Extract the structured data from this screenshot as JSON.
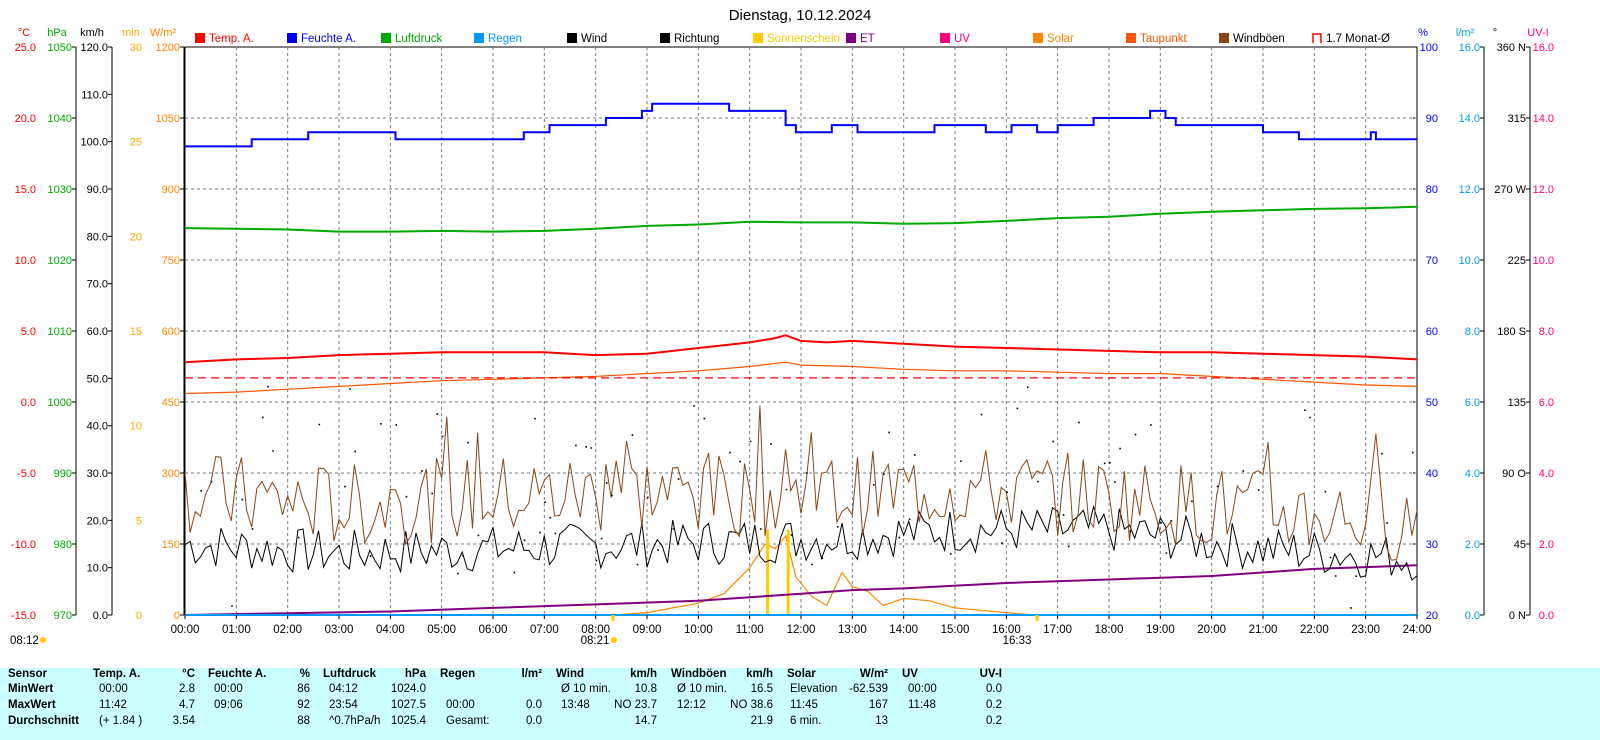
{
  "chart_data": {
    "type": "line",
    "title": "Dienstag, 10.12.2024",
    "x_tick_labels": [
      "00:00",
      "01:00",
      "02:00",
      "03:00",
      "04:00",
      "05:00",
      "06:00",
      "07:00",
      "08:00",
      "09:00",
      "10:00",
      "11:00",
      "12:00",
      "13:00",
      "14:00",
      "15:00",
      "16:00",
      "17:00",
      "18:00",
      "19:00",
      "20:00",
      "21:00",
      "22:00",
      "23:00",
      "24:00"
    ],
    "grid": true,
    "legend_position": "top",
    "legend": [
      {
        "label": "Temp. A.",
        "color": "#ff0000"
      },
      {
        "label": "Feuchte A.",
        "color": "#0000ff"
      },
      {
        "label": "Luftdruck",
        "color": "#00aa00"
      },
      {
        "label": "Regen",
        "color": "#0099ff"
      },
      {
        "label": "Wind",
        "color": "#000000"
      },
      {
        "label": "Richtung",
        "color": "#000000"
      },
      {
        "label": "Sonnenschein",
        "color": "#ffcc00"
      },
      {
        "label": "ET",
        "color": "#800080"
      },
      {
        "label": "UV",
        "color": "#ff0080"
      },
      {
        "label": "Solar",
        "color": "#ff8800"
      },
      {
        "label": "Taupunkt",
        "color": "#ff5500"
      },
      {
        "label": "Windböen",
        "color": "#8b4513"
      },
      {
        "label": "1.7 Monat-Ø",
        "color": "#ff0000"
      }
    ],
    "axes": {
      "temp": {
        "unit": "°C",
        "ticks": [
          "25.0",
          "20.0",
          "15.0",
          "10.0",
          "5.0",
          "0.0",
          "-5.0",
          "-10.0",
          "-15.0"
        ],
        "ylim": [
          -15,
          25
        ],
        "color": "#ff0000"
      },
      "pressure": {
        "unit": "hPa",
        "ticks": [
          "1050",
          "1040",
          "1030",
          "1020",
          "1010",
          "1000",
          "990",
          "980",
          "970"
        ],
        "ylim": [
          970,
          1050
        ],
        "color": "#00aa00"
      },
      "wind": {
        "unit": "km/h",
        "ticks": [
          "120.0",
          "110.0",
          "100.0",
          "90.0",
          "80.0",
          "70.0",
          "60.0",
          "50.0",
          "40.0",
          "30.0",
          "20.0",
          "10.0",
          "0.0"
        ],
        "ylim": [
          0,
          120
        ],
        "color": "#000000"
      },
      "sunshine": {
        "unit": "min",
        "ticks": [
          "30",
          "25",
          "20",
          "15",
          "10",
          "5",
          "0"
        ],
        "ylim": [
          0,
          30
        ],
        "color": "#ffaa00"
      },
      "solar": {
        "unit": "W/m²",
        "ticks": [
          "1200",
          "1050",
          "900",
          "750",
          "600",
          "450",
          "300",
          "150",
          "0"
        ],
        "ylim": [
          0,
          1200
        ],
        "color": "#ff8800"
      },
      "humidity": {
        "unit": "%",
        "ticks": [
          "100",
          "90",
          "80",
          "70",
          "60",
          "50",
          "40",
          "30",
          "20"
        ],
        "ylim": [
          20,
          100
        ],
        "color": "#0000ff"
      },
      "rain": {
        "unit": "l/m²",
        "ticks": [
          "16.0",
          "14.0",
          "12.0",
          "10.0",
          "8.0",
          "6.0",
          "4.0",
          "2.0",
          "0.0"
        ],
        "ylim": [
          0,
          16
        ],
        "color": "#0099ff"
      },
      "direction": {
        "unit": "°",
        "ticks": [
          "360 N",
          "315",
          "270 W",
          "225",
          "180 S",
          "135",
          "90 O",
          "45",
          "0 N"
        ],
        "ylim": [
          0,
          360
        ],
        "color": "#000000"
      },
      "uv": {
        "unit": "UV-I",
        "ticks": [
          "16.0",
          "14.0",
          "12.0",
          "10.0",
          "8.0",
          "6.0",
          "4.0",
          "2.0",
          "0.0"
        ],
        "ylim": [
          0,
          16
        ],
        "color": "#ff0080"
      }
    },
    "series": [
      {
        "name": "Feuchte A.",
        "axis": "humidity",
        "step": true,
        "points": [
          [
            0,
            86
          ],
          [
            1.15,
            86
          ],
          [
            1.3,
            87
          ],
          [
            2.3,
            87
          ],
          [
            2.4,
            88
          ],
          [
            4.0,
            88
          ],
          [
            4.1,
            87
          ],
          [
            6.5,
            87
          ],
          [
            6.6,
            88
          ],
          [
            7.0,
            88
          ],
          [
            7.1,
            89
          ],
          [
            8.0,
            89
          ],
          [
            8.2,
            90
          ],
          [
            8.8,
            90
          ],
          [
            8.9,
            91
          ],
          [
            9.1,
            92
          ],
          [
            10.5,
            92
          ],
          [
            10.6,
            91
          ],
          [
            11.4,
            91
          ],
          [
            11.7,
            89
          ],
          [
            11.9,
            88
          ],
          [
            12.4,
            88
          ],
          [
            12.6,
            89
          ],
          [
            12.9,
            89
          ],
          [
            13.1,
            88
          ],
          [
            14.5,
            88
          ],
          [
            14.6,
            89
          ],
          [
            15.5,
            89
          ],
          [
            15.6,
            88
          ],
          [
            16.0,
            88
          ],
          [
            16.1,
            89
          ],
          [
            16.5,
            89
          ],
          [
            16.6,
            88
          ],
          [
            16.9,
            88
          ],
          [
            17.0,
            89
          ],
          [
            17.6,
            89
          ],
          [
            17.7,
            90
          ],
          [
            18.7,
            90
          ],
          [
            18.8,
            91
          ],
          [
            19.1,
            90
          ],
          [
            19.3,
            89
          ],
          [
            20.9,
            89
          ],
          [
            21.0,
            88
          ],
          [
            21.6,
            88
          ],
          [
            21.7,
            87
          ],
          [
            23.0,
            87
          ],
          [
            23.1,
            88
          ],
          [
            23.2,
            87
          ],
          [
            24.0,
            87
          ]
        ]
      },
      {
        "name": "Luftdruck",
        "axis": "pressure",
        "step": false,
        "points": [
          [
            0,
            1024.5
          ],
          [
            2,
            1024.3
          ],
          [
            3,
            1024.0
          ],
          [
            4,
            1024.0
          ],
          [
            5,
            1024.1
          ],
          [
            6,
            1024.0
          ],
          [
            7,
            1024.1
          ],
          [
            8,
            1024.4
          ],
          [
            9,
            1024.8
          ],
          [
            10,
            1025.0
          ],
          [
            11,
            1025.4
          ],
          [
            12,
            1025.3
          ],
          [
            13,
            1025.3
          ],
          [
            14,
            1025.1
          ],
          [
            15,
            1025.2
          ],
          [
            16,
            1025.5
          ],
          [
            17,
            1025.9
          ],
          [
            18,
            1026.1
          ],
          [
            19,
            1026.5
          ],
          [
            20,
            1026.8
          ],
          [
            21,
            1027.0
          ],
          [
            22,
            1027.2
          ],
          [
            23,
            1027.3
          ],
          [
            24,
            1027.5
          ]
        ]
      },
      {
        "name": "Temp. A.",
        "axis": "temp",
        "step": false,
        "points": [
          [
            0,
            2.8
          ],
          [
            1,
            3.0
          ],
          [
            2,
            3.1
          ],
          [
            3,
            3.3
          ],
          [
            4,
            3.4
          ],
          [
            5,
            3.5
          ],
          [
            6,
            3.5
          ],
          [
            7,
            3.5
          ],
          [
            7.5,
            3.4
          ],
          [
            8,
            3.3
          ],
          [
            9,
            3.4
          ],
          [
            9.5,
            3.6
          ],
          [
            10,
            3.8
          ],
          [
            10.5,
            4.0
          ],
          [
            11,
            4.2
          ],
          [
            11.5,
            4.5
          ],
          [
            11.7,
            4.7
          ],
          [
            12,
            4.3
          ],
          [
            12.5,
            4.2
          ],
          [
            13,
            4.3
          ],
          [
            14,
            4.1
          ],
          [
            15,
            3.9
          ],
          [
            16,
            3.8
          ],
          [
            17,
            3.7
          ],
          [
            18,
            3.6
          ],
          [
            19,
            3.5
          ],
          [
            20,
            3.5
          ],
          [
            21,
            3.4
          ],
          [
            22,
            3.3
          ],
          [
            23,
            3.2
          ],
          [
            23.5,
            3.1
          ],
          [
            24,
            3.0
          ]
        ]
      },
      {
        "name": "Taupunkt",
        "axis": "temp",
        "step": false,
        "points": [
          [
            0,
            0.6
          ],
          [
            1,
            0.7
          ],
          [
            2,
            0.9
          ],
          [
            3,
            1.1
          ],
          [
            4,
            1.3
          ],
          [
            5,
            1.5
          ],
          [
            6,
            1.6
          ],
          [
            7,
            1.7
          ],
          [
            8,
            1.8
          ],
          [
            9,
            2.0
          ],
          [
            10,
            2.2
          ],
          [
            11,
            2.5
          ],
          [
            11.7,
            2.8
          ],
          [
            12,
            2.6
          ],
          [
            13,
            2.5
          ],
          [
            14,
            2.3
          ],
          [
            15,
            2.2
          ],
          [
            16,
            2.2
          ],
          [
            17,
            2.1
          ],
          [
            18,
            2.0
          ],
          [
            19,
            2.0
          ],
          [
            20,
            1.8
          ],
          [
            21,
            1.6
          ],
          [
            22,
            1.4
          ],
          [
            23,
            1.2
          ],
          [
            24,
            1.1
          ]
        ]
      },
      {
        "name": "1.7 Monat-Ø",
        "axis": "temp",
        "step": false,
        "dashed": true,
        "points": [
          [
            0,
            1.7
          ],
          [
            24,
            1.7
          ]
        ]
      },
      {
        "name": "Solar",
        "axis": "solar",
        "step": false,
        "points": [
          [
            8.35,
            0
          ],
          [
            9,
            5
          ],
          [
            9.5,
            15
          ],
          [
            10,
            25
          ],
          [
            10.5,
            45
          ],
          [
            11,
            100
          ],
          [
            11.3,
            150
          ],
          [
            11.5,
            140
          ],
          [
            11.7,
            167
          ],
          [
            11.9,
            80
          ],
          [
            12.2,
            40
          ],
          [
            12.5,
            20
          ],
          [
            12.8,
            90
          ],
          [
            13.0,
            60
          ],
          [
            13.3,
            50
          ],
          [
            13.6,
            20
          ],
          [
            14.0,
            35
          ],
          [
            14.5,
            30
          ],
          [
            15.0,
            15
          ],
          [
            15.5,
            10
          ],
          [
            16.0,
            5
          ],
          [
            16.55,
            0
          ]
        ]
      },
      {
        "name": "Sonnenschein",
        "axis": "sunshine",
        "type": "bar",
        "points": [
          [
            11.35,
            4.5
          ],
          [
            11.75,
            4.5
          ]
        ]
      },
      {
        "name": "ET",
        "axis": "rain",
        "step": false,
        "points": [
          [
            0,
            0
          ],
          [
            2,
            0.05
          ],
          [
            4,
            0.1
          ],
          [
            6,
            0.2
          ],
          [
            8,
            0.3
          ],
          [
            10,
            0.4
          ],
          [
            12,
            0.6
          ],
          [
            13,
            0.7
          ],
          [
            14,
            0.75
          ],
          [
            16,
            0.9
          ],
          [
            18,
            1.0
          ],
          [
            20,
            1.1
          ],
          [
            22,
            1.3
          ],
          [
            24,
            1.4
          ]
        ]
      },
      {
        "name": "Regen",
        "axis": "rain",
        "points": [
          [
            0,
            0
          ],
          [
            24,
            0
          ]
        ]
      },
      {
        "name": "Wind",
        "axis": "wind",
        "noise": "wind",
        "base": [
          [
            0,
            15
          ],
          [
            3,
            13
          ],
          [
            6,
            14
          ],
          [
            9,
            15
          ],
          [
            12,
            16
          ],
          [
            15,
            18
          ],
          [
            18,
            18
          ],
          [
            21,
            14
          ],
          [
            24,
            12
          ]
        ]
      },
      {
        "name": "Windböen",
        "axis": "wind",
        "noise": "gust",
        "base": [
          [
            0,
            26
          ],
          [
            3,
            23
          ],
          [
            6,
            25
          ],
          [
            9,
            26
          ],
          [
            12,
            25
          ],
          [
            15,
            27
          ],
          [
            18,
            25
          ],
          [
            21,
            22
          ],
          [
            24,
            20
          ]
        ]
      },
      {
        "name": "Richtung",
        "axis": "direction",
        "type": "scatter",
        "center": 80
      }
    ],
    "annotations": {
      "sunrise": "08:21",
      "sunset": "16:33",
      "sunshine_total": "08:12"
    }
  },
  "table": {
    "headers": {
      "sensor": "Sensor",
      "temp": "Temp. A.",
      "temp_unit": "°C",
      "hum": "Feuchte A.",
      "hum_unit": "%",
      "press": "Luftdruck",
      "press_unit": "hPa",
      "rain": "Regen",
      "rain_unit": "l/m²",
      "wind": "Wind",
      "wind_unit": "km/h",
      "gust": "Windböen",
      "gust_unit": "km/h",
      "solar": "Solar",
      "solar_unit": "W/m²",
      "uv": "UV",
      "uv_unit": "UV-I"
    },
    "row_labels": [
      "MinWert",
      "MaxWert",
      "Durchschnitt"
    ],
    "rows": [
      {
        "temp_t": "00:00",
        "temp_v": "2.8",
        "hum_t": "00:00",
        "hum_v": "86",
        "press_t": "04:12",
        "press_v": "1024.0",
        "rain_t": "",
        "rain_v": "",
        "wind_t": "Ø 10 min.",
        "wind_v": "10.8",
        "gust_t": "Ø 10 min.",
        "gust_v": "16.5",
        "solar_t": "Elevation",
        "solar_v": "-62.539",
        "uv_t": "00:00",
        "uv_v": "0.0"
      },
      {
        "temp_t": "11:42",
        "temp_v": "4.7",
        "hum_t": "09:06",
        "hum_v": "92",
        "press_t": "23:54",
        "press_v": "1027.5",
        "rain_t": "00:00",
        "rain_v": "0.0",
        "wind_t": "13:48",
        "wind_v": "NO 23.7",
        "gust_t": "12:12",
        "gust_v": "NO 38.6",
        "solar_t": "11:45",
        "solar_v": "167",
        "uv_t": "11:48",
        "uv_v": "0.2"
      },
      {
        "temp_t": "(+ 1.84 )",
        "temp_v": "3.54",
        "hum_t": "",
        "hum_v": "88",
        "press_t": "^0.7hPa/h",
        "press_v": "1025.4",
        "rain_t": "Gesamt:",
        "rain_v": "0.0",
        "wind_t": "",
        "wind_v": "14.7",
        "gust_t": "",
        "gust_v": "21.9",
        "solar_t": "6 min.",
        "solar_v": "13",
        "uv_t": "",
        "uv_v": "0.2"
      }
    ]
  }
}
